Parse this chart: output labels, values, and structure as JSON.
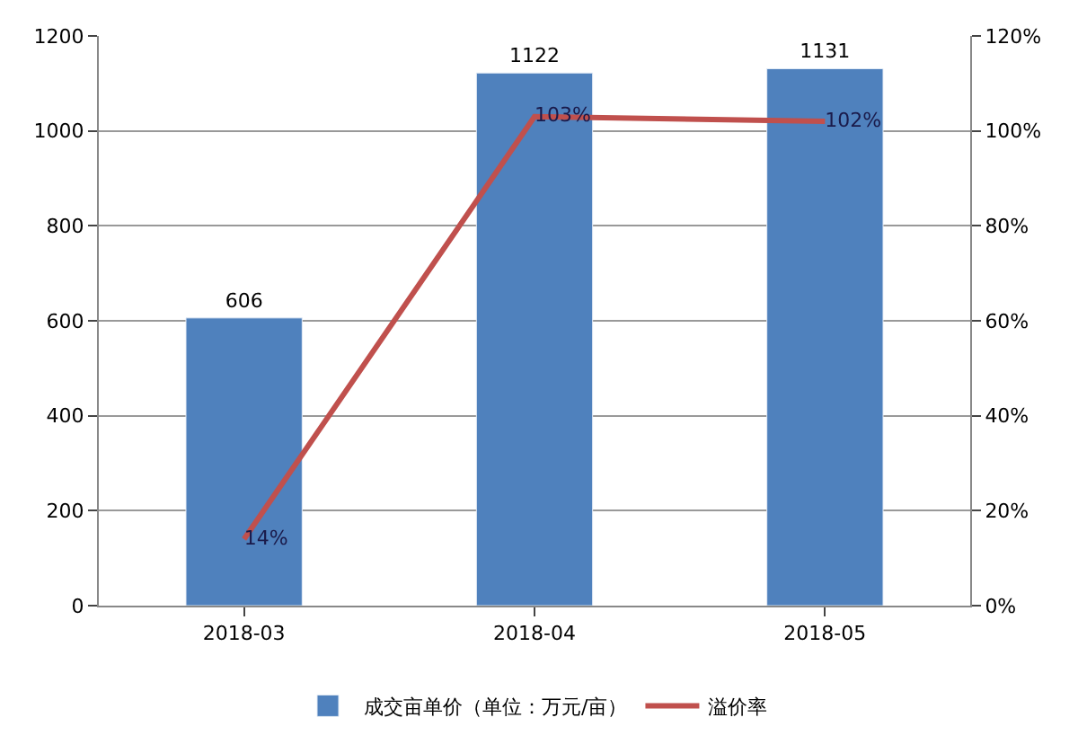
{
  "chart_data": {
    "type": "bar",
    "categories": [
      "2018-03",
      "2018-04",
      "2018-05"
    ],
    "series": [
      {
        "name": "成交亩单价（单位：万元/亩）",
        "color": "#4f81bd",
        "values": [
          606,
          1122,
          1131
        ],
        "value_labels": [
          "606",
          "1122",
          "1131"
        ]
      },
      {
        "name": "溢价率",
        "type": "line",
        "axis": "y2",
        "color": "#c0504d",
        "values": [
          14,
          103,
          102
        ],
        "value_labels": [
          "14%",
          "103%",
          "102%"
        ]
      }
    ],
    "ylim": [
      0,
      1200
    ],
    "yticks": [
      0,
      200,
      400,
      600,
      800,
      1000,
      1200
    ],
    "y2lim": [
      0,
      120
    ],
    "y2ticks": [
      {
        "value": 0,
        "label": "0%"
      },
      {
        "value": 20,
        "label": "20%"
      },
      {
        "value": 40,
        "label": "40%"
      },
      {
        "value": 60,
        "label": "60%"
      },
      {
        "value": 80,
        "label": "80%"
      },
      {
        "value": 100,
        "label": "100%"
      },
      {
        "value": 120,
        "label": "120%"
      }
    ],
    "grid": "y",
    "legend": "bottom",
    "marker": "none",
    "line_style": "solid"
  }
}
